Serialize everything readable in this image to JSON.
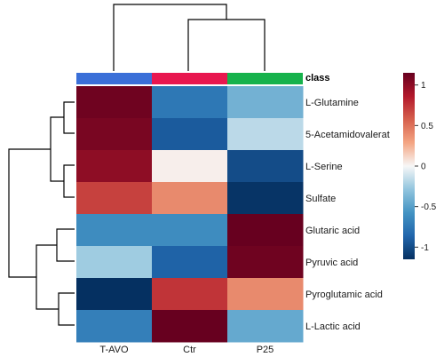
{
  "chart_data": {
    "type": "heatmap",
    "columns": [
      "T-AVO",
      "Ctr",
      "P25"
    ],
    "rows": [
      "L-Glutamine",
      "5-Acetamidovalerat",
      "L-Serine",
      "Sulfate",
      "Glutaric acid",
      "Pyruvic acid",
      "Pyroglutamic acid",
      "L-Lactic acid"
    ],
    "values": [
      [
        1.12,
        -0.75,
        -0.4
      ],
      [
        1.08,
        -0.92,
        -0.17
      ],
      [
        1.0,
        0.03,
        -1.0
      ],
      [
        0.7,
        0.4,
        -1.13
      ],
      [
        -0.62,
        -0.62,
        1.15
      ],
      [
        -0.25,
        -0.88,
        1.12
      ],
      [
        -1.15,
        0.75,
        0.4
      ],
      [
        -0.7,
        1.15,
        -0.45
      ]
    ],
    "class_label": "class",
    "class_colors": [
      "#3a6fd8",
      "#e8174f",
      "#17b24c"
    ],
    "colorbar": {
      "min": -1.15,
      "max": 1.15,
      "ticks": [
        1,
        0.5,
        0,
        -0.5,
        -1
      ],
      "tick_labels": [
        "1",
        "0.5",
        "0",
        "-0.5",
        "-1"
      ]
    },
    "row_dendrogram": true,
    "column_dendrogram": true
  }
}
